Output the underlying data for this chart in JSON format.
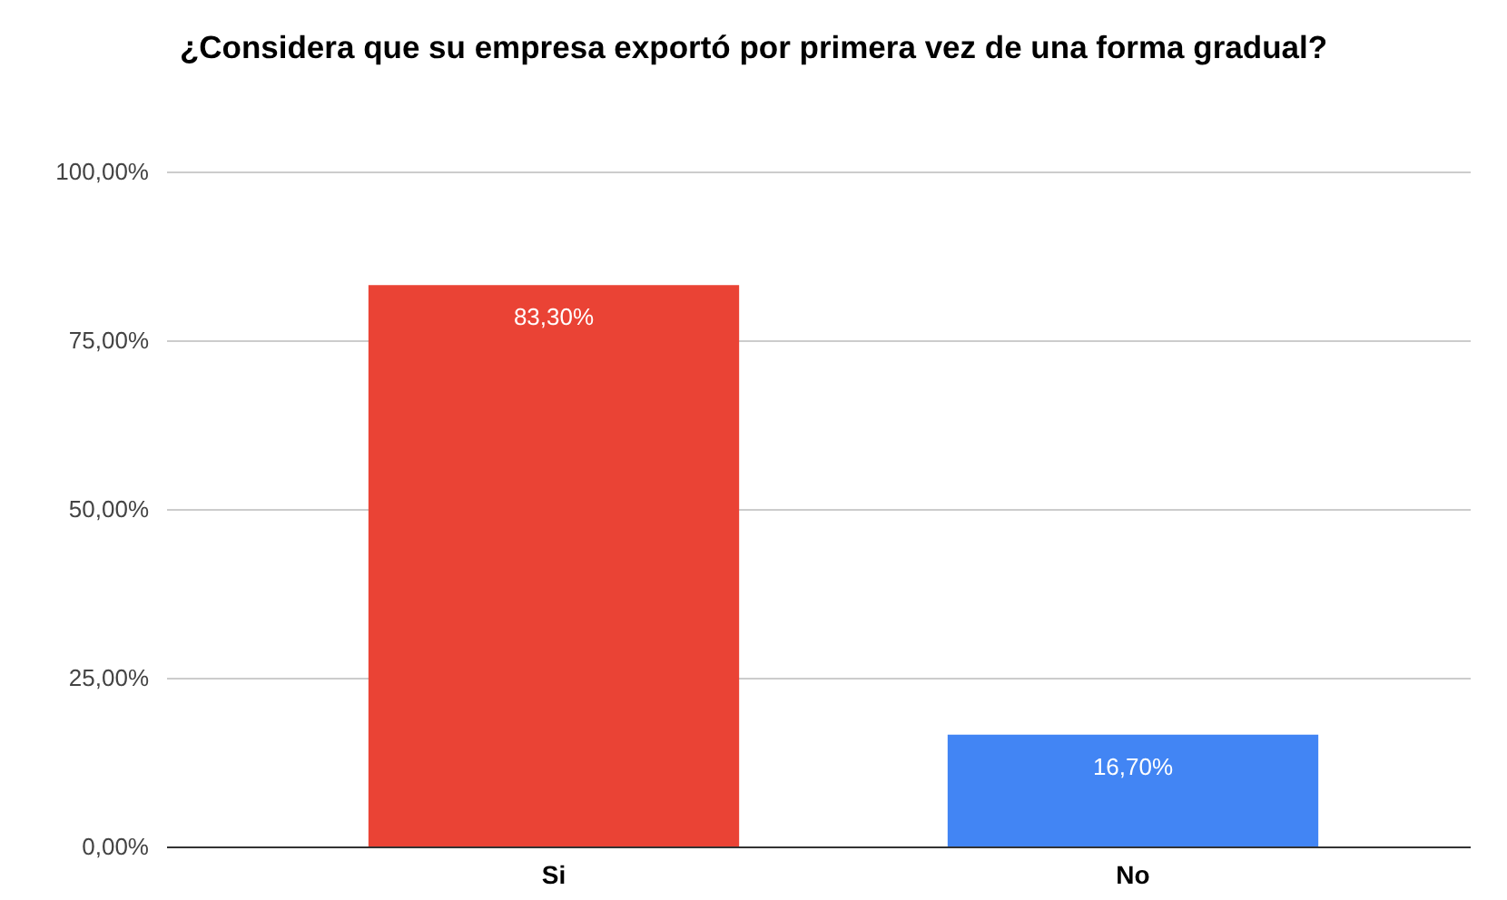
{
  "chart_data": {
    "type": "bar",
    "title": "¿Considera que su empresa exportó por primera vez de una forma gradual?",
    "categories": [
      "Si",
      "No"
    ],
    "values": [
      83.3,
      16.7
    ],
    "colors": [
      "#ea4335",
      "#4285f4"
    ],
    "value_labels": [
      "83,30%",
      "16,70%"
    ],
    "ylim": [
      0,
      100
    ],
    "yticks": [
      {
        "value": 0,
        "label": "0,00%"
      },
      {
        "value": 25,
        "label": "25,00%"
      },
      {
        "value": 50,
        "label": "50,00%"
      },
      {
        "value": 75,
        "label": "75,00%"
      },
      {
        "value": 100,
        "label": "100,00%"
      }
    ],
    "grid": true
  }
}
